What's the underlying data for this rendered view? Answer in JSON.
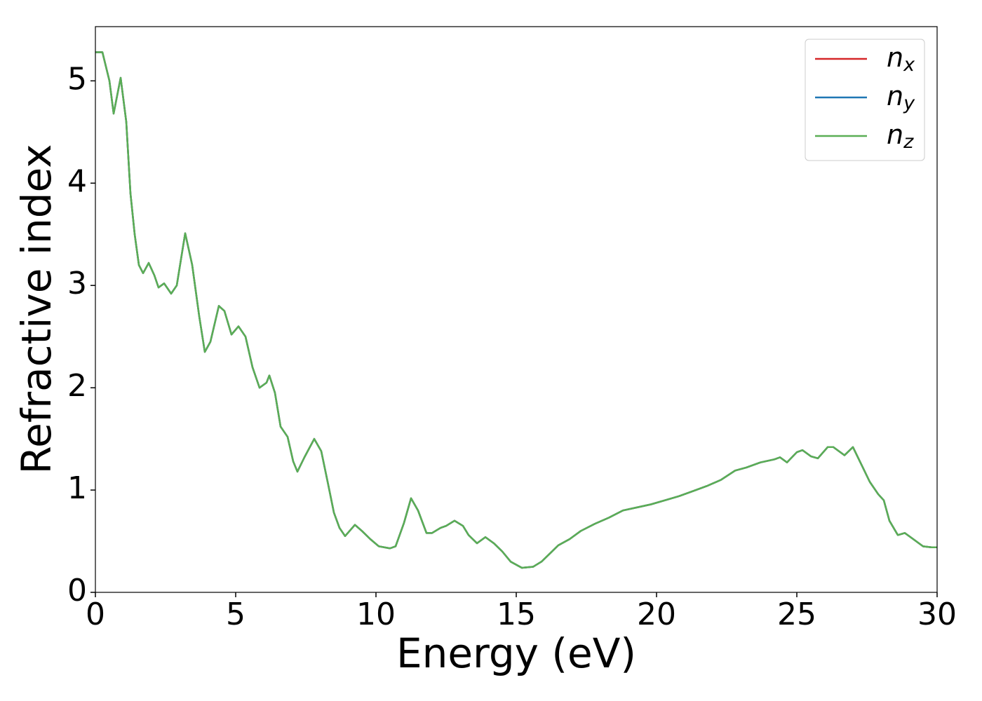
{
  "chart_data": {
    "type": "line",
    "xlabel": "Energy (eV)",
    "ylabel": "Refractive index",
    "x": [
      0,
      0.25,
      0.5,
      0.65,
      0.9,
      1.1,
      1.25,
      1.4,
      1.55,
      1.7,
      1.9,
      2.1,
      2.25,
      2.45,
      2.7,
      2.9,
      3.2,
      3.45,
      3.7,
      3.9,
      4.1,
      4.4,
      4.6,
      4.85,
      5.1,
      5.35,
      5.6,
      5.85,
      6.1,
      6.2,
      6.4,
      6.6,
      6.85,
      7.05,
      7.2,
      7.45,
      7.8,
      8.05,
      8.3,
      8.5,
      8.7,
      8.9,
      9.25,
      9.5,
      9.8,
      10.1,
      10.5,
      10.7,
      11.0,
      11.25,
      11.5,
      11.8,
      12.0,
      12.3,
      12.5,
      12.8,
      13.1,
      13.3,
      13.6,
      13.9,
      14.2,
      14.5,
      14.8,
      15.2,
      15.6,
      15.9,
      16.2,
      16.5,
      16.9,
      17.3,
      17.8,
      18.3,
      18.8,
      19.3,
      19.8,
      20.3,
      20.8,
      21.3,
      21.8,
      22.3,
      22.8,
      23.2,
      23.7,
      24.2,
      24.4,
      24.65,
      25.0,
      25.2,
      25.5,
      25.75,
      26.1,
      26.3,
      26.7,
      27.0,
      27.3,
      27.6,
      27.9,
      28.1,
      28.3,
      28.6,
      28.85,
      29.1,
      29.5,
      29.8,
      30.0
    ],
    "series": [
      {
        "name": "nx",
        "color": "#d62728",
        "values": [
          5.28,
          5.28,
          5.0,
          4.68,
          5.03,
          4.6,
          3.9,
          3.5,
          3.2,
          3.12,
          3.22,
          3.1,
          2.98,
          3.02,
          2.92,
          3.0,
          3.51,
          3.2,
          2.7,
          2.35,
          2.45,
          2.8,
          2.75,
          2.52,
          2.6,
          2.5,
          2.2,
          2.0,
          2.05,
          2.12,
          1.95,
          1.62,
          1.52,
          1.28,
          1.18,
          1.32,
          1.5,
          1.38,
          1.05,
          0.78,
          0.63,
          0.55,
          0.66,
          0.6,
          0.52,
          0.45,
          0.43,
          0.45,
          0.68,
          0.92,
          0.8,
          0.58,
          0.58,
          0.63,
          0.65,
          0.7,
          0.65,
          0.56,
          0.48,
          0.54,
          0.48,
          0.4,
          0.3,
          0.24,
          0.25,
          0.3,
          0.38,
          0.46,
          0.52,
          0.6,
          0.67,
          0.73,
          0.8,
          0.83,
          0.86,
          0.9,
          0.94,
          0.99,
          1.04,
          1.1,
          1.19,
          1.22,
          1.27,
          1.3,
          1.32,
          1.27,
          1.37,
          1.39,
          1.33,
          1.31,
          1.42,
          1.42,
          1.34,
          1.42,
          1.25,
          1.08,
          0.96,
          0.9,
          0.7,
          0.56,
          0.58,
          0.53,
          0.45,
          0.44,
          0.44
        ]
      },
      {
        "name": "ny",
        "color": "#1f77b4",
        "values": [
          5.28,
          5.28,
          5.0,
          4.68,
          5.03,
          4.6,
          3.9,
          3.5,
          3.2,
          3.12,
          3.22,
          3.1,
          2.98,
          3.02,
          2.92,
          3.0,
          3.51,
          3.2,
          2.7,
          2.35,
          2.45,
          2.8,
          2.75,
          2.52,
          2.6,
          2.5,
          2.2,
          2.0,
          2.05,
          2.12,
          1.95,
          1.62,
          1.52,
          1.28,
          1.18,
          1.32,
          1.5,
          1.38,
          1.05,
          0.78,
          0.63,
          0.55,
          0.66,
          0.6,
          0.52,
          0.45,
          0.43,
          0.45,
          0.68,
          0.92,
          0.8,
          0.58,
          0.58,
          0.63,
          0.65,
          0.7,
          0.65,
          0.56,
          0.48,
          0.54,
          0.48,
          0.4,
          0.3,
          0.24,
          0.25,
          0.3,
          0.38,
          0.46,
          0.52,
          0.6,
          0.67,
          0.73,
          0.8,
          0.83,
          0.86,
          0.9,
          0.94,
          0.99,
          1.04,
          1.1,
          1.19,
          1.22,
          1.27,
          1.3,
          1.32,
          1.27,
          1.37,
          1.39,
          1.33,
          1.31,
          1.42,
          1.42,
          1.34,
          1.42,
          1.25,
          1.08,
          0.96,
          0.9,
          0.7,
          0.56,
          0.58,
          0.53,
          0.45,
          0.44,
          0.44
        ]
      },
      {
        "name": "nz",
        "color": "#5aae55",
        "values": [
          5.28,
          5.28,
          5.0,
          4.68,
          5.03,
          4.6,
          3.9,
          3.5,
          3.2,
          3.12,
          3.22,
          3.1,
          2.98,
          3.02,
          2.92,
          3.0,
          3.51,
          3.2,
          2.7,
          2.35,
          2.45,
          2.8,
          2.75,
          2.52,
          2.6,
          2.5,
          2.2,
          2.0,
          2.05,
          2.12,
          1.95,
          1.62,
          1.52,
          1.28,
          1.18,
          1.32,
          1.5,
          1.38,
          1.05,
          0.78,
          0.63,
          0.55,
          0.66,
          0.6,
          0.52,
          0.45,
          0.43,
          0.45,
          0.68,
          0.92,
          0.8,
          0.58,
          0.58,
          0.63,
          0.65,
          0.7,
          0.65,
          0.56,
          0.48,
          0.54,
          0.48,
          0.4,
          0.3,
          0.24,
          0.25,
          0.3,
          0.38,
          0.46,
          0.52,
          0.6,
          0.67,
          0.73,
          0.8,
          0.83,
          0.86,
          0.9,
          0.94,
          0.99,
          1.04,
          1.1,
          1.19,
          1.22,
          1.27,
          1.3,
          1.32,
          1.27,
          1.37,
          1.39,
          1.33,
          1.31,
          1.42,
          1.42,
          1.34,
          1.42,
          1.25,
          1.08,
          0.96,
          0.9,
          0.7,
          0.56,
          0.58,
          0.53,
          0.45,
          0.44,
          0.44
        ]
      }
    ],
    "xlim": [
      0,
      30
    ],
    "xticks": [
      0,
      5,
      10,
      15,
      20,
      25,
      30
    ],
    "ylim": [
      0,
      5.53
    ],
    "yticks": [
      0,
      1,
      2,
      3,
      4,
      5
    ],
    "grid": false,
    "legend": "upper right"
  }
}
